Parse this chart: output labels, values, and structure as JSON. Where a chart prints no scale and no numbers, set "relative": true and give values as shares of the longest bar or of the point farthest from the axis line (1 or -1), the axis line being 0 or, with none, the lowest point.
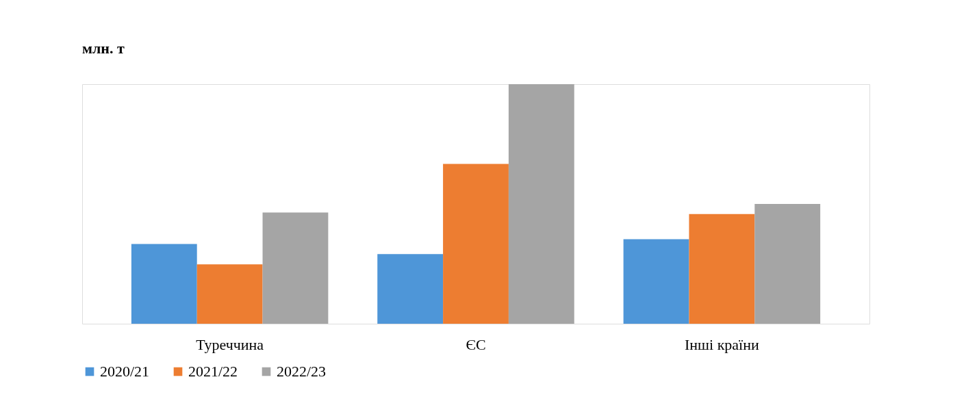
{
  "chart_data": {
    "type": "bar",
    "title": "млн. т",
    "relative": true,
    "categories": [
      "Туреччина",
      "ЄС",
      "Інші країни"
    ],
    "series": [
      {
        "name": "2020/21",
        "color": "#4e96d8",
        "values": [
          0.333,
          0.291,
          0.353
        ]
      },
      {
        "name": "2021/22",
        "color": "#ed7d31",
        "values": [
          0.248,
          0.667,
          0.458
        ]
      },
      {
        "name": "2022/23",
        "color": "#a5a5a5",
        "values": [
          0.464,
          1,
          0.5
        ]
      }
    ],
    "grid": false,
    "legend": "bottom"
  }
}
